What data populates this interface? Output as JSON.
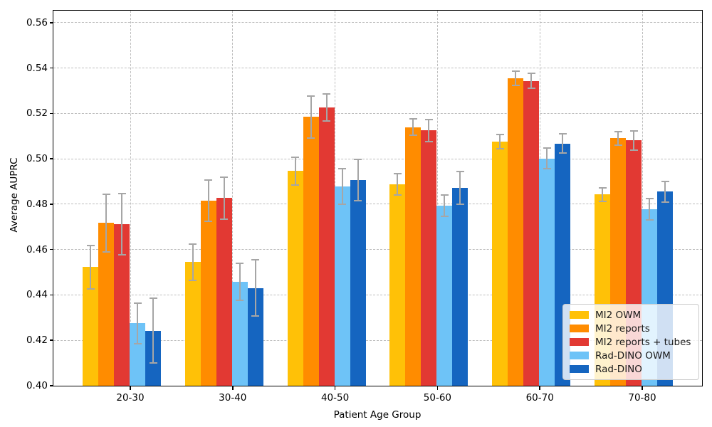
{
  "chart_data": {
    "type": "bar",
    "xlabel": "Patient Age Group",
    "ylabel": "Average AUPRC",
    "categories": [
      "20-30",
      "30-40",
      "40-50",
      "50-60",
      "60-70",
      "70-80"
    ],
    "series": [
      {
        "name": "MI2 OWM",
        "color": "#FFC107",
        "values": [
          0.4523,
          0.4545,
          0.4946,
          0.4888,
          0.5077,
          0.4843
        ],
        "errors": [
          0.0096,
          0.008,
          0.006,
          0.0046,
          0.0031,
          0.003
        ]
      },
      {
        "name": "MI2 reports",
        "color": "#FF8C00",
        "values": [
          0.4717,
          0.4815,
          0.5185,
          0.514,
          0.5355,
          0.509
        ],
        "errors": [
          0.0126,
          0.0091,
          0.0092,
          0.0037,
          0.0031,
          0.0031
        ]
      },
      {
        "name": "MI2 reports + tubes",
        "color": "#E23933",
        "values": [
          0.4712,
          0.4827,
          0.5226,
          0.5125,
          0.5344,
          0.5081
        ],
        "errors": [
          0.0136,
          0.0093,
          0.006,
          0.0049,
          0.0032,
          0.0043
        ]
      },
      {
        "name": "Rad-DINO OWM",
        "color": "#6EC3F7",
        "values": [
          0.4275,
          0.4457,
          0.4878,
          0.4793,
          0.5002,
          0.4777
        ],
        "errors": [
          0.009,
          0.0082,
          0.0078,
          0.0048,
          0.0046,
          0.0047
        ]
      },
      {
        "name": "Rad-DINO",
        "color": "#1565C0",
        "values": [
          0.4243,
          0.443,
          0.4906,
          0.4873,
          0.5068,
          0.4855
        ],
        "errors": [
          0.0144,
          0.0124,
          0.0092,
          0.0072,
          0.0041,
          0.0046
        ]
      }
    ],
    "yticks": [
      0.4,
      0.42,
      0.44,
      0.46,
      0.48,
      0.5,
      0.52,
      0.54,
      0.56
    ],
    "ylim": [
      0.4,
      0.5653
    ],
    "grid": true,
    "grid_style": "dashed",
    "error_bar_color": "#a6a6a6",
    "legend_position": "lower right",
    "legend_entries": [
      "MI2 OWM",
      "MI2 reports",
      "MI2 reports + tubes",
      "Rad-DINO OWM",
      "Rad-DINO"
    ]
  }
}
